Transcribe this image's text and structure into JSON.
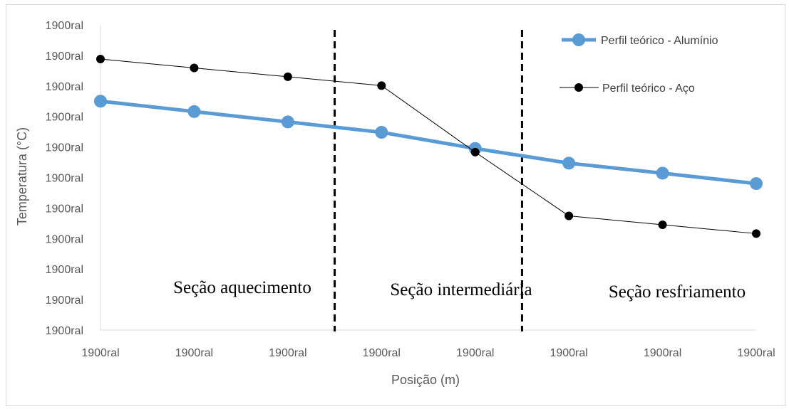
{
  "chart_data": {
    "type": "line",
    "title": "",
    "xlabel": "Posição (m)",
    "ylabel": "Temperatura (°C)",
    "x_tick_labels": [
      "1900ral",
      "1900ral",
      "1900ral",
      "1900ral",
      "1900ral",
      "1900ral",
      "1900ral",
      "1900ral"
    ],
    "y_tick_labels": [
      "1900ral",
      "1900ral",
      "1900ral",
      "1900ral",
      "1900ral",
      "1900ral",
      "1900ral",
      "1900ral",
      "1900ral",
      "1900ral",
      "1900ral"
    ],
    "x": [
      0,
      1,
      2,
      3,
      4,
      5,
      6,
      7
    ],
    "ylim": [
      0,
      10
    ],
    "grid": false,
    "legend_position": "top-right",
    "series": [
      {
        "name": "Perfil teórico - Alumínio",
        "color": "#5b9bd5",
        "marker": "circle",
        "values": [
          7.5,
          7.16,
          6.82,
          6.48,
          5.95,
          5.47,
          5.14,
          4.8
        ]
      },
      {
        "name": "Perfil teórico - Aço",
        "color": "#000000",
        "marker": "circle",
        "values": [
          8.88,
          8.59,
          8.3,
          8.01,
          5.83,
          3.74,
          3.45,
          3.16
        ]
      }
    ],
    "vertical_lines": [
      {
        "x": 2.5,
        "style": "dashed",
        "color": "#000000"
      },
      {
        "x": 4.5,
        "style": "dashed",
        "color": "#000000"
      }
    ],
    "annotations": [
      "Seção aquecimento",
      "Seção intermediária",
      "Seção resfriamento"
    ]
  }
}
